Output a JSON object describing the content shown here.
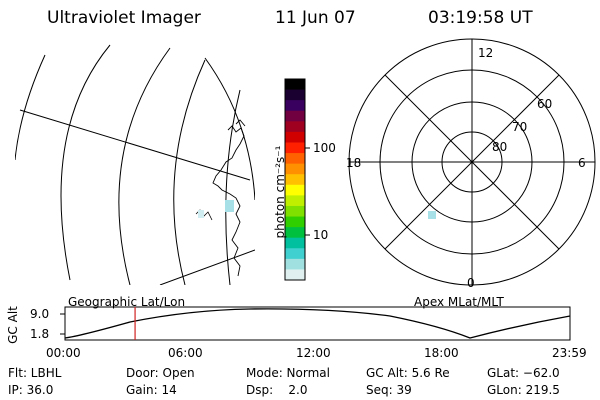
{
  "header": {
    "instrument": "Ultraviolet Imager",
    "date": "11 Jun 07",
    "time": "03:19:58 UT"
  },
  "colorbar": {
    "unit_label": "photon cm⁻²s⁻¹",
    "ticks": [
      "100",
      "10"
    ],
    "colors": [
      "#000000",
      "#1a0030",
      "#3a0060",
      "#700040",
      "#a00020",
      "#d00000",
      "#ff2000",
      "#ff6000",
      "#ff9000",
      "#ffc000",
      "#ffff00",
      "#c0f000",
      "#80e000",
      "#30d000",
      "#00c040",
      "#00c0a0",
      "#40d0d0",
      "#a0e0e0",
      "#e0f0f0"
    ]
  },
  "polar_plot": {
    "mlt_labels": {
      "top": "12",
      "bottom": "0",
      "left": "18",
      "right": "6"
    },
    "lat_labels": [
      "60",
      "70",
      "80"
    ]
  },
  "timeline": {
    "left_label": "Geographic Lat/Lon",
    "right_label": "Apex MLat/MLT",
    "y_axis_label": "GC Alt",
    "y_ticks": [
      "9.0",
      "1.8"
    ],
    "x_ticks": [
      "00:00",
      "06:00",
      "12:00",
      "18:00",
      "23:59"
    ],
    "current_marker_hours": 3.33
  },
  "info": {
    "row1": [
      "Flt: LBHL",
      "Door: Open",
      "Mode: Normal",
      "GC Alt: 5.6 Re",
      "GLat: −62.0"
    ],
    "row2": [
      "IP: 36.0",
      "Gain: 14",
      "Dsp:    2.0",
      "Seq: 39",
      "GLon: 219.5"
    ]
  }
}
